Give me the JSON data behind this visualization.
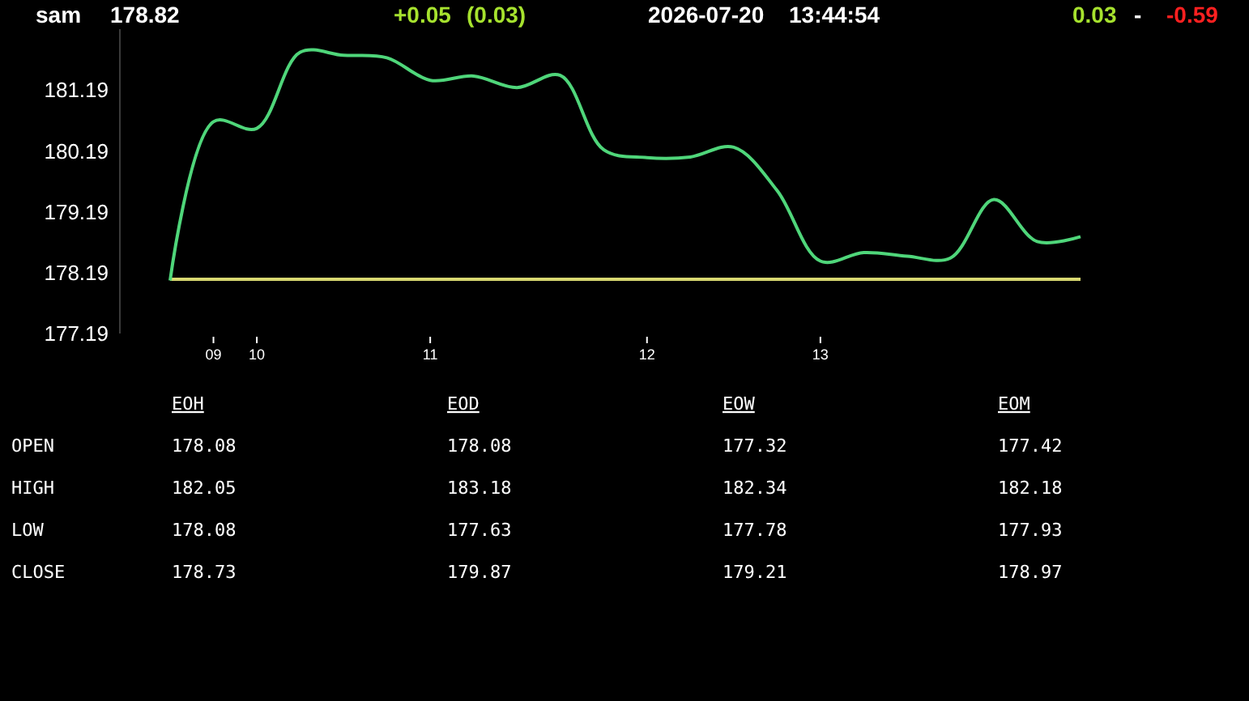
{
  "chart_data": [
    {
      "type": "line",
      "title": "sam",
      "annotations": [
        "178.82",
        "+0.05",
        "(0.03)",
        "2026-07-20",
        "13:44:54",
        "0.03",
        "-",
        "-0.59"
      ],
      "categories": [
        null,
        "09",
        "10",
        null,
        null,
        null,
        "11",
        null,
        null,
        null,
        null,
        "12",
        null,
        null,
        null,
        "13",
        null,
        null,
        null,
        null,
        null,
        null
      ],
      "series": [
        {
          "color": "#4fd67a",
          "values": [
            178.06,
            180.67,
            180.56,
            181.81,
            181.76,
            181.72,
            181.35,
            181.42,
            181.23,
            181.43,
            180.21,
            180.08,
            180.09,
            180.25,
            179.54,
            178.38,
            178.52,
            178.46,
            178.43,
            179.39,
            178.7,
            178.78
          ]
        }
      ],
      "ylim": [
        177.19,
        182.19
      ],
      "yticks": [
        177.19,
        178.19,
        179.19,
        180.19,
        181.19
      ],
      "ref_lines": [
        {
          "axis": "y",
          "value": 178.08,
          "color": "#d8d870"
        }
      ],
      "grid": false,
      "marker": "none",
      "line_style": "solid"
    },
    {
      "type": "other",
      "categories": [
        "EOH",
        "EOD",
        "EOW",
        "EOM"
      ],
      "y_categories": [
        "OPEN",
        "HIGH",
        "LOW",
        "CLOSE"
      ],
      "cell_labels": [
        [
          "178.08",
          "178.08",
          "177.32",
          "177.42"
        ],
        [
          "182.05",
          "183.18",
          "182.34",
          "182.18"
        ],
        [
          "178.08",
          "177.63",
          "177.78",
          "177.93"
        ],
        [
          "178.73",
          "179.87",
          "179.21",
          "178.97"
        ]
      ]
    }
  ]
}
